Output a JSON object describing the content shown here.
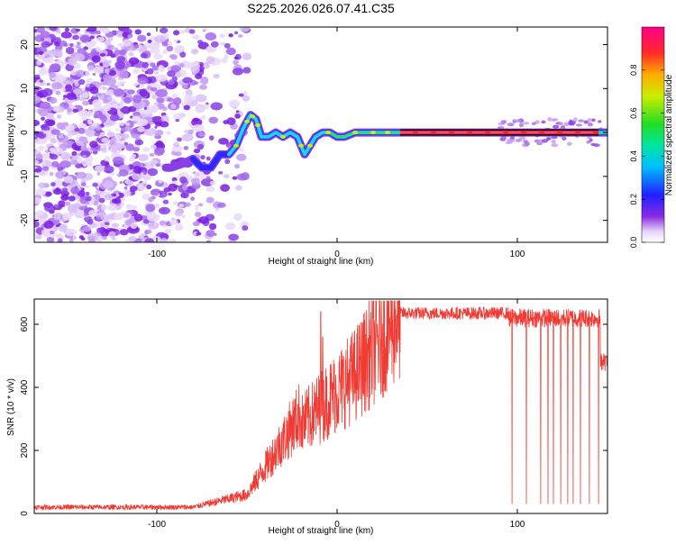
{
  "title": "S225.2026.026.07.41.C35",
  "chart_data": [
    {
      "type": "heatmap",
      "xlabel": "Height of straight line (km)",
      "ylabel": "Frequency (Hz)",
      "xlim": [
        -168,
        150
      ],
      "ylim": [
        -25,
        24
      ],
      "xticks": [
        -100,
        0,
        100
      ],
      "yticks": [
        -20,
        -10,
        0,
        10,
        20
      ],
      "colorbar": {
        "label": "Normalized spectral amplitude",
        "range": [
          0,
          1
        ],
        "ticks": [
          0.0,
          0.2,
          0.4,
          0.6,
          0.8
        ],
        "tick_labels": [
          "0.0",
          "0.2",
          "0.4",
          "0.6",
          "0.8"
        ],
        "colormap": "rainbow (violet → blue → cyan → green → yellow → orange → red → magenta)"
      },
      "ridge": {
        "description": "peak frequency track vs height",
        "points": [
          [
            -92,
            -8
          ],
          [
            -85,
            -7
          ],
          [
            -80,
            -6
          ],
          [
            -75,
            -8
          ],
          [
            -70,
            -8
          ],
          [
            -65,
            -5
          ],
          [
            -60,
            -5
          ],
          [
            -56,
            -3
          ],
          [
            -52,
            1
          ],
          [
            -48,
            4
          ],
          [
            -45,
            3
          ],
          [
            -42,
            -1
          ],
          [
            -38,
            -1
          ],
          [
            -34,
            0
          ],
          [
            -30,
            -1
          ],
          [
            -26,
            0
          ],
          [
            -22,
            -1
          ],
          [
            -18,
            -5
          ],
          [
            -15,
            -3
          ],
          [
            -12,
            -1
          ],
          [
            -8,
            0
          ],
          [
            -4,
            0
          ],
          [
            0,
            -1
          ],
          [
            4,
            -1
          ],
          [
            10,
            0
          ],
          [
            20,
            0
          ],
          [
            30,
            0
          ],
          [
            150,
            0
          ]
        ],
        "high_amplitude_segment": [
          35,
          145
        ]
      }
    },
    {
      "type": "line",
      "xlabel": "Height of straight line (km)",
      "ylabel": "SNR (10 * v/v)",
      "xlim": [
        -168,
        150
      ],
      "ylim": [
        0,
        680
      ],
      "xticks": [
        -100,
        0,
        100
      ],
      "yticks": [
        0,
        200,
        400,
        600
      ],
      "color": "#ef3b33",
      "series": [
        {
          "values_by_segment": [
            {
              "x_range": [
                -168,
                -80
              ],
              "level": 20,
              "noise": 8
            },
            {
              "x_range": [
                -80,
                -50
              ],
              "level_start": 20,
              "level_end": 60
            },
            {
              "x_range": [
                -50,
                -20
              ],
              "level_start": 60,
              "level_end": 320
            },
            {
              "x_range": [
                -20,
                10
              ],
              "level_start": 280,
              "level_end": 440
            },
            {
              "x_range": [
                10,
                35
              ],
              "level_start": 440,
              "level_end": 640
            },
            {
              "x_range": [
                35,
                95
              ],
              "level": 635,
              "noise": 20
            },
            {
              "x_range": [
                95,
                150
              ],
              "level": 620,
              "noise": 30
            }
          ],
          "spikes": [
            {
              "x": -9,
              "y": 640
            },
            {
              "x": -8,
              "y": 560
            },
            {
              "x": -30,
              "y": 270
            },
            {
              "x": -25,
              "y": 300
            }
          ],
          "dropouts": [
            97,
            105,
            113,
            117,
            120,
            124,
            128,
            131,
            135,
            140,
            145
          ],
          "dropout_level": 30,
          "end_value": 480
        }
      ]
    }
  ]
}
